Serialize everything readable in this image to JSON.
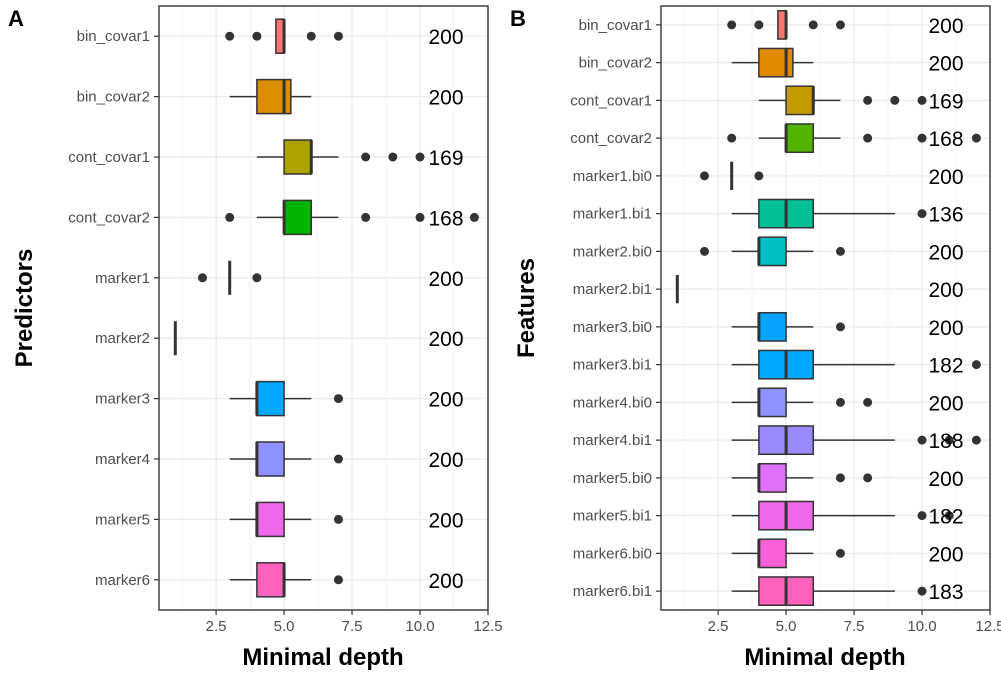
{
  "chart_data": [
    {
      "type": "boxplot",
      "panel_tag": "A",
      "xlabel": "Minimal depth",
      "ylabel": "Predictors",
      "xlim": [
        0.4,
        12.5
      ],
      "xticks": [
        "2.5",
        "5.0",
        "7.5",
        "10.0",
        "12.5"
      ],
      "grid": true,
      "rows": [
        {
          "label": "bin_covar1",
          "color": "#F8766D",
          "q1": 4.7,
          "median": 5,
          "q3": 5,
          "wlo": 5,
          "whi": 5,
          "outliers": [
            3,
            4,
            6,
            7
          ],
          "count": "200"
        },
        {
          "label": "bin_covar2",
          "color": "#DB8E00",
          "q1": 4,
          "median": 5,
          "q3": 5.25,
          "wlo": 3,
          "whi": 6,
          "outliers": [],
          "count": "200"
        },
        {
          "label": "cont_covar1",
          "color": "#AEA200",
          "q1": 5,
          "median": 6,
          "q3": 6,
          "wlo": 4,
          "whi": 7,
          "outliers": [
            8,
            9,
            10
          ],
          "count": "169"
        },
        {
          "label": "cont_covar2",
          "color": "#00B400",
          "q1": 5,
          "median": 5,
          "q3": 6,
          "wlo": 4,
          "whi": 7,
          "outliers": [
            3,
            8,
            10,
            12
          ],
          "count": "168"
        },
        {
          "label": "marker1",
          "color": "#00BE67",
          "q1": 3,
          "median": 3,
          "q3": 3,
          "wlo": 3,
          "whi": 3,
          "outliers": [
            2,
            4
          ],
          "count": "200"
        },
        {
          "label": "marker2",
          "color": "#00BFC4",
          "q1": 1,
          "median": 1,
          "q3": 1,
          "wlo": 1,
          "whi": 1,
          "outliers": [],
          "count": "200"
        },
        {
          "label": "marker3",
          "color": "#00A9FF",
          "q1": 4,
          "median": 4,
          "q3": 5,
          "wlo": 3,
          "whi": 6,
          "outliers": [
            7
          ],
          "count": "200"
        },
        {
          "label": "marker4",
          "color": "#8F91FF",
          "q1": 4,
          "median": 4,
          "q3": 5,
          "wlo": 3,
          "whi": 6,
          "outliers": [
            7
          ],
          "count": "200"
        },
        {
          "label": "marker5",
          "color": "#EF67EB",
          "q1": 4,
          "median": 4,
          "q3": 5,
          "wlo": 3,
          "whi": 6,
          "outliers": [
            7
          ],
          "count": "200"
        },
        {
          "label": "marker6",
          "color": "#FF62BC",
          "q1": 4,
          "median": 5,
          "q3": 5,
          "wlo": 3,
          "whi": 6,
          "outliers": [
            7
          ],
          "count": "200"
        }
      ]
    },
    {
      "type": "boxplot",
      "panel_tag": "B",
      "xlabel": "Minimal depth",
      "ylabel": "Features",
      "xlim": [
        0.4,
        12.5
      ],
      "xticks": [
        "2.5",
        "5.0",
        "7.5",
        "10.0",
        "12.5"
      ],
      "grid": true,
      "rows": [
        {
          "label": "bin_covar1",
          "color": "#F8766D",
          "q1": 4.7,
          "median": 5,
          "q3": 5,
          "wlo": 5,
          "whi": 5,
          "outliers": [
            3,
            4,
            6,
            7
          ],
          "count": "200"
        },
        {
          "label": "bin_covar2",
          "color": "#E38900",
          "q1": 4,
          "median": 5,
          "q3": 5.25,
          "wlo": 3,
          "whi": 6,
          "outliers": [],
          "count": "200"
        },
        {
          "label": "cont_covar1",
          "color": "#C49A00",
          "q1": 5,
          "median": 6,
          "q3": 6,
          "wlo": 4,
          "whi": 7,
          "outliers": [
            8,
            9,
            10
          ],
          "count": "169"
        },
        {
          "label": "cont_covar2",
          "color": "#53B400",
          "q1": 5,
          "median": 5,
          "q3": 6,
          "wlo": 4,
          "whi": 7,
          "outliers": [
            3,
            8,
            10,
            12
          ],
          "count": "168"
        },
        {
          "label": "marker1.bi0",
          "color": "#00BC56",
          "q1": 3,
          "median": 3,
          "q3": 3,
          "wlo": 3,
          "whi": 3,
          "outliers": [
            2,
            4
          ],
          "count": "200"
        },
        {
          "label": "marker1.bi1",
          "color": "#00C094",
          "q1": 4,
          "median": 5,
          "q3": 6,
          "wlo": 3,
          "whi": 9,
          "outliers": [
            10
          ],
          "count": "136"
        },
        {
          "label": "marker2.bi0",
          "color": "#00BFC4",
          "q1": 4,
          "median": 4,
          "q3": 5,
          "wlo": 3,
          "whi": 6,
          "outliers": [
            2,
            7
          ],
          "count": "200"
        },
        {
          "label": "marker2.bi1",
          "color": "#00B6EB",
          "q1": 1,
          "median": 1,
          "q3": 1,
          "wlo": 1,
          "whi": 1,
          "outliers": [],
          "count": "200"
        },
        {
          "label": "marker3.bi0",
          "color": "#06A4FF",
          "q1": 4,
          "median": 4,
          "q3": 5,
          "wlo": 3,
          "whi": 6,
          "outliers": [
            7
          ],
          "count": "200"
        },
        {
          "label": "marker3.bi1",
          "color": "#00A9FF",
          "q1": 4,
          "median": 5,
          "q3": 6,
          "wlo": 3,
          "whi": 9,
          "outliers": [
            12
          ],
          "count": "182"
        },
        {
          "label": "marker4.bi0",
          "color": "#8F91FF",
          "q1": 4,
          "median": 4,
          "q3": 5,
          "wlo": 3,
          "whi": 6,
          "outliers": [
            7,
            8
          ],
          "count": "200"
        },
        {
          "label": "marker4.bi1",
          "color": "#9A8AFF",
          "q1": 4,
          "median": 5,
          "q3": 6,
          "wlo": 3,
          "whi": 9,
          "outliers": [
            10,
            11,
            12
          ],
          "count": "188"
        },
        {
          "label": "marker5.bi0",
          "color": "#DF70F8",
          "q1": 4,
          "median": 4,
          "q3": 5,
          "wlo": 3,
          "whi": 6,
          "outliers": [
            7,
            8
          ],
          "count": "200"
        },
        {
          "label": "marker5.bi1",
          "color": "#EF67EB",
          "q1": 4,
          "median": 5,
          "q3": 6,
          "wlo": 3,
          "whi": 9,
          "outliers": [
            10,
            11
          ],
          "count": "182"
        },
        {
          "label": "marker6.bi0",
          "color": "#FB61D7",
          "q1": 4,
          "median": 4,
          "q3": 5,
          "wlo": 3,
          "whi": 6,
          "outliers": [
            7
          ],
          "count": "200"
        },
        {
          "label": "marker6.bi1",
          "color": "#FF62BC",
          "q1": 4,
          "median": 5,
          "q3": 6,
          "wlo": 3,
          "whi": 9,
          "outliers": [
            10
          ],
          "count": "183"
        }
      ]
    }
  ]
}
